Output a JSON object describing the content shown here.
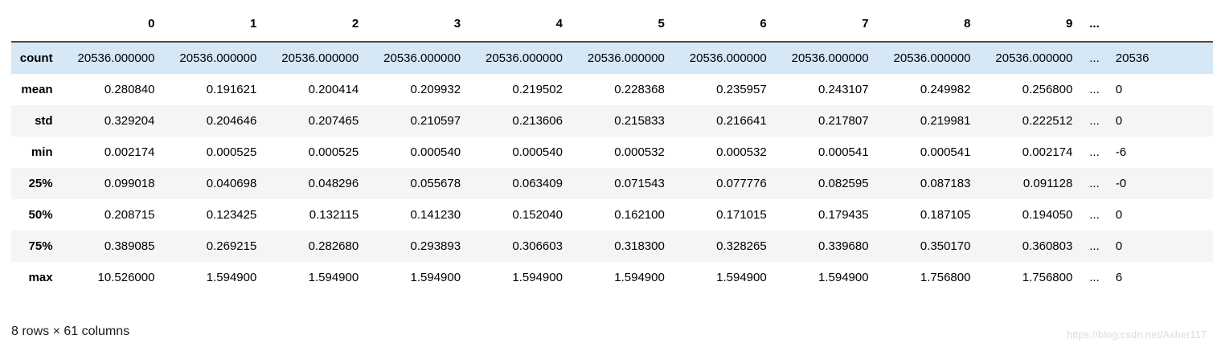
{
  "chart_data": {
    "type": "table",
    "title": "",
    "highlighted_row": "count",
    "columns": [
      "",
      "0",
      "1",
      "2",
      "3",
      "4",
      "5",
      "6",
      "7",
      "8",
      "9",
      "...",
      ""
    ],
    "rows": [
      {
        "label": "count",
        "values": [
          "20536.000000",
          "20536.000000",
          "20536.000000",
          "20536.000000",
          "20536.000000",
          "20536.000000",
          "20536.000000",
          "20536.000000",
          "20536.000000",
          "20536.000000",
          "...",
          "20536"
        ]
      },
      {
        "label": "mean",
        "values": [
          "0.280840",
          "0.191621",
          "0.200414",
          "0.209932",
          "0.219502",
          "0.228368",
          "0.235957",
          "0.243107",
          "0.249982",
          "0.256800",
          "...",
          "0"
        ]
      },
      {
        "label": "std",
        "values": [
          "0.329204",
          "0.204646",
          "0.207465",
          "0.210597",
          "0.213606",
          "0.215833",
          "0.216641",
          "0.217807",
          "0.219981",
          "0.222512",
          "...",
          "0"
        ]
      },
      {
        "label": "min",
        "values": [
          "0.002174",
          "0.000525",
          "0.000525",
          "0.000540",
          "0.000540",
          "0.000532",
          "0.000532",
          "0.000541",
          "0.000541",
          "0.002174",
          "...",
          "-6"
        ]
      },
      {
        "label": "25%",
        "values": [
          "0.099018",
          "0.040698",
          "0.048296",
          "0.055678",
          "0.063409",
          "0.071543",
          "0.077776",
          "0.082595",
          "0.087183",
          "0.091128",
          "...",
          "-0"
        ]
      },
      {
        "label": "50%",
        "values": [
          "0.208715",
          "0.123425",
          "0.132115",
          "0.141230",
          "0.152040",
          "0.162100",
          "0.171015",
          "0.179435",
          "0.187105",
          "0.194050",
          "...",
          "0"
        ]
      },
      {
        "label": "75%",
        "values": [
          "0.389085",
          "0.269215",
          "0.282680",
          "0.293893",
          "0.306603",
          "0.318300",
          "0.328265",
          "0.339680",
          "0.350170",
          "0.360803",
          "...",
          "0"
        ]
      },
      {
        "label": "max",
        "values": [
          "10.526000",
          "1.594900",
          "1.594900",
          "1.594900",
          "1.594900",
          "1.594900",
          "1.594900",
          "1.594900",
          "1.756800",
          "1.756800",
          "...",
          "6"
        ]
      }
    ]
  },
  "footer": {
    "summary": "8 rows × 61 columns"
  },
  "watermark": {
    "text": "https://blog.csdn.net/Asher117"
  },
  "colors": {
    "highlight_row": "#d6e7f6",
    "stripe": "#f5f5f5",
    "header_border": "#4a4a4a",
    "text": "#000000"
  }
}
